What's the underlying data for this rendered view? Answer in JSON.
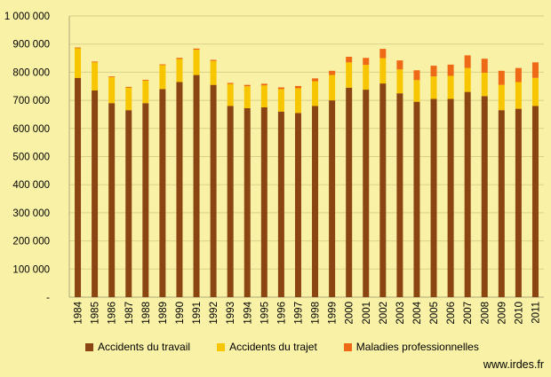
{
  "chart_data": {
    "type": "bar",
    "stacked": true,
    "categories": [
      "1984",
      "1985",
      "1986",
      "1987",
      "1988",
      "1989",
      "1990",
      "1991",
      "1992",
      "1993",
      "1994",
      "1995",
      "1996",
      "1997",
      "1998",
      "1999",
      "2000",
      "2001",
      "2002",
      "2003",
      "2004",
      "2005",
      "2006",
      "2007",
      "2008",
      "2009",
      "2010",
      "2011"
    ],
    "series": [
      {
        "name": "Accidents du travail",
        "color": "#8a4512",
        "values": [
          780000,
          735000,
          690000,
          665000,
          690000,
          740000,
          765000,
          790000,
          755000,
          680000,
          672000,
          675000,
          660000,
          655000,
          680000,
          700000,
          745000,
          738000,
          760000,
          725000,
          695000,
          705000,
          705000,
          730000,
          715000,
          665000,
          670000,
          680000
        ]
      },
      {
        "name": "Accidents du trajet",
        "color": "#f7c600",
        "values": [
          105000,
          100000,
          92000,
          80000,
          80000,
          85000,
          82000,
          90000,
          85000,
          78000,
          78000,
          78000,
          80000,
          88000,
          88000,
          90000,
          90000,
          88000,
          90000,
          85000,
          77000,
          80000,
          82000,
          85000,
          83000,
          90000,
          95000,
          100000
        ]
      },
      {
        "name": "Maladies professionnelles",
        "color": "#ee6a16",
        "values": [
          3000,
          3000,
          3000,
          3000,
          3000,
          3000,
          4000,
          4000,
          4000,
          4000,
          5000,
          6000,
          6000,
          8000,
          10000,
          15000,
          20000,
          25000,
          33000,
          32000,
          35000,
          38000,
          40000,
          45000,
          50000,
          50000,
          50000,
          55000
        ]
      }
    ],
    "ylim": [
      0,
      1000000
    ],
    "yticks": [
      "-",
      "100 000",
      "200 000",
      "300 000",
      "400 000",
      "500 000",
      "600 000",
      "700 000",
      "800 000",
      "900 000",
      "1 000 000"
    ],
    "grid": true,
    "legend_position": "bottom"
  },
  "legend_labels": [
    "Accidents du travail",
    "Accidents du trajet",
    "Maladies professionnelles"
  ],
  "credit": "www.irdes.fr"
}
